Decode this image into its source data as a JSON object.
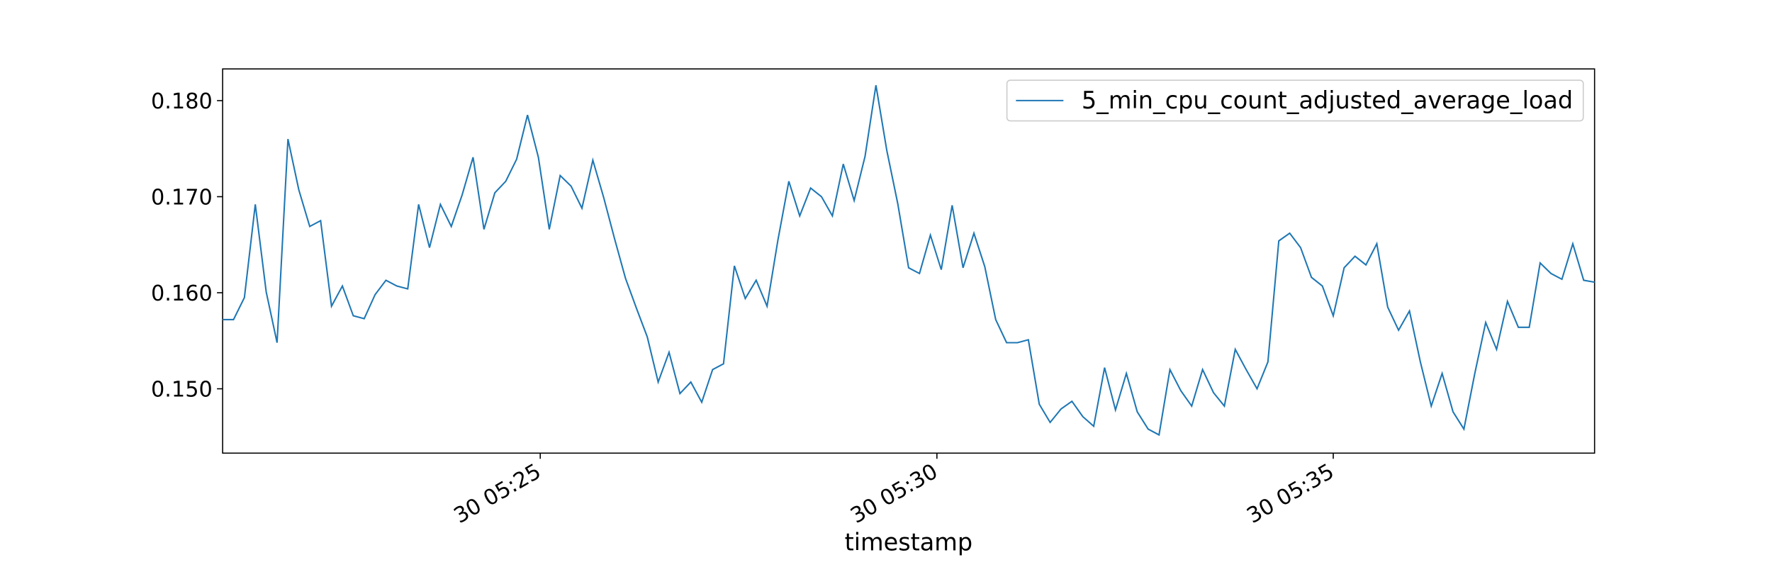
{
  "chart_data": {
    "type": "line",
    "xlabel": "timestamp",
    "legend": "upper right",
    "series": [
      {
        "name": "5_min_cpu_count_adjusted_average_load",
        "color": "#1f77b4",
        "values": [
          0.1572,
          0.1572,
          0.1595,
          0.1692,
          0.1601,
          0.1548,
          0.176,
          0.1707,
          0.1669,
          0.1675,
          0.1586,
          0.1607,
          0.1576,
          0.1573,
          0.1598,
          0.1613,
          0.1607,
          0.1604,
          0.1692,
          0.1647,
          0.1692,
          0.1669,
          0.1702,
          0.1741,
          0.1666,
          0.1704,
          0.1716,
          0.1739,
          0.1785,
          0.1741,
          0.1666,
          0.1722,
          0.1711,
          0.1688,
          0.1738,
          0.1699,
          0.1656,
          0.1615,
          0.1584,
          0.1554,
          0.1507,
          0.1538,
          0.1495,
          0.1507,
          0.1486,
          0.152,
          0.1526,
          0.1628,
          0.1594,
          0.1613,
          0.1586,
          0.1655,
          0.1716,
          0.168,
          0.1709,
          0.17,
          0.168,
          0.1734,
          0.1696,
          0.1742,
          0.1816,
          0.1748,
          0.1693,
          0.1626,
          0.162,
          0.166,
          0.1624,
          0.1691,
          0.1626,
          0.1662,
          0.1627,
          0.1572,
          0.1548,
          0.1548,
          0.1551,
          0.1484,
          0.1465,
          0.1479,
          0.1487,
          0.1471,
          0.1461,
          0.1522,
          0.1478,
          0.1516,
          0.1476,
          0.1458,
          0.1452,
          0.152,
          0.1498,
          0.1482,
          0.152,
          0.1496,
          0.1482,
          0.1541,
          0.152,
          0.15,
          0.1528,
          0.1654,
          0.1662,
          0.1647,
          0.1616,
          0.1607,
          0.1576,
          0.1626,
          0.1638,
          0.1629,
          0.1651,
          0.1585,
          0.1561,
          0.1581,
          0.1528,
          0.1482,
          0.1516,
          0.1476,
          0.1458,
          0.1516,
          0.1569,
          0.1541,
          0.1591,
          0.1564,
          0.1564,
          0.1631,
          0.162,
          0.1614,
          0.1651,
          0.1613,
          0.1611
        ]
      }
    ],
    "xlim": [
      0,
      126
    ],
    "xticks": [
      {
        "value": 29.17,
        "label": "30 05:25"
      },
      {
        "value": 65.6,
        "label": "30 05:30"
      },
      {
        "value": 102.0,
        "label": "30 05:35"
      }
    ],
    "ylim": [
      0.1433,
      0.1833
    ],
    "yticks": [
      {
        "value": 0.15,
        "label": "0.150"
      },
      {
        "value": 0.16,
        "label": "0.160"
      },
      {
        "value": 0.17,
        "label": "0.170"
      },
      {
        "value": 0.18,
        "label": "0.180"
      }
    ]
  }
}
